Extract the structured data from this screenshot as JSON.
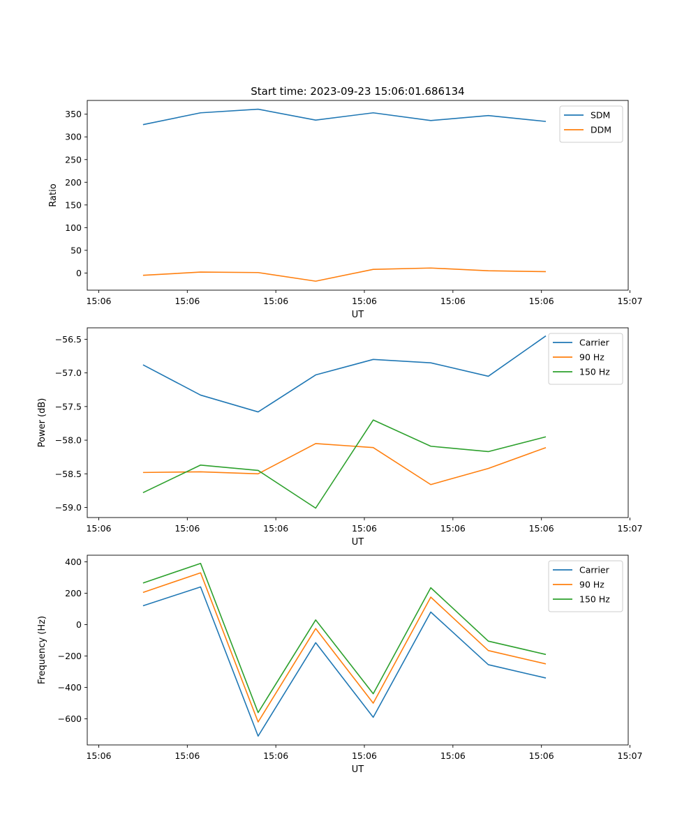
{
  "title": "Start time: 2023-09-23 15:06:01.686134",
  "colors": {
    "blue": "#1f77b4",
    "orange": "#ff7f0e",
    "green": "#2ca02c"
  },
  "chart_data": [
    {
      "type": "line",
      "title": "Start time: 2023-09-23 15:06:01.686134",
      "xlabel": "UT",
      "ylabel": "Ratio",
      "x": [
        0.5,
        1.15,
        1.8,
        2.45,
        3.1,
        3.75,
        4.4,
        5.05
      ],
      "xlim": [
        -0.13,
        5.98
      ],
      "x_ticks": [
        0,
        1,
        2,
        3,
        4,
        5,
        6
      ],
      "x_tick_labels": [
        "15:06",
        "15:06",
        "15:06",
        "15:06",
        "15:06",
        "15:06",
        "15:07"
      ],
      "ylim": [
        -37.8,
        380.3
      ],
      "y_ticks": [
        0,
        50,
        100,
        150,
        200,
        250,
        300,
        350
      ],
      "y_tick_labels": [
        "0",
        "50",
        "100",
        "150",
        "200",
        "250",
        "300",
        "350"
      ],
      "legend": "top-right",
      "series": [
        {
          "name": "SDM",
          "color": "#1f77b4",
          "values": [
            327,
            353,
            361,
            337,
            353,
            336,
            347,
            334
          ]
        },
        {
          "name": "DDM",
          "color": "#ff7f0e",
          "values": [
            -5,
            2,
            1,
            -18,
            8,
            11,
            5,
            3
          ]
        }
      ]
    },
    {
      "type": "line",
      "xlabel": "UT",
      "ylabel": "Power (dB)",
      "x": [
        0.5,
        1.15,
        1.8,
        2.45,
        3.1,
        3.75,
        4.4,
        5.05
      ],
      "xlim": [
        -0.13,
        5.98
      ],
      "x_ticks": [
        0,
        1,
        2,
        3,
        4,
        5,
        6
      ],
      "x_tick_labels": [
        "15:06",
        "15:06",
        "15:06",
        "15:06",
        "15:06",
        "15:06",
        "15:07"
      ],
      "ylim": [
        -59.15,
        -56.33
      ],
      "y_ticks": [
        -59.0,
        -58.5,
        -58.0,
        -57.5,
        -57.0,
        -56.5
      ],
      "y_tick_labels": [
        "−59.0",
        "−58.5",
        "−58.0",
        "−57.5",
        "−57.0",
        "−56.5"
      ],
      "legend": "top-right",
      "series": [
        {
          "name": "Carrier",
          "color": "#1f77b4",
          "values": [
            -56.88,
            -57.33,
            -57.58,
            -57.03,
            -56.8,
            -56.85,
            -57.05,
            -56.45
          ]
        },
        {
          "name": "90 Hz",
          "color": "#ff7f0e",
          "values": [
            -58.48,
            -58.47,
            -58.5,
            -58.05,
            -58.11,
            -58.66,
            -58.42,
            -58.11
          ]
        },
        {
          "name": "150 Hz",
          "color": "#2ca02c",
          "values": [
            -58.78,
            -58.37,
            -58.45,
            -59.01,
            -57.7,
            -58.09,
            -58.17,
            -57.95
          ]
        }
      ]
    },
    {
      "type": "line",
      "xlabel": "UT",
      "ylabel": "Frequency (Hz)",
      "x": [
        0.5,
        1.15,
        1.8,
        2.45,
        3.1,
        3.75,
        4.4,
        5.05
      ],
      "xlim": [
        -0.13,
        5.98
      ],
      "x_ticks": [
        0,
        1,
        2,
        3,
        4,
        5,
        6
      ],
      "x_tick_labels": [
        "15:06",
        "15:06",
        "15:06",
        "15:06",
        "15:06",
        "15:06",
        "15:07"
      ],
      "ylim": [
        -766,
        442
      ],
      "y_ticks": [
        -600,
        -400,
        -200,
        0,
        200,
        400
      ],
      "y_tick_labels": [
        "−600",
        "−400",
        "−200",
        "0",
        "200",
        "400"
      ],
      "legend": "top-right",
      "series": [
        {
          "name": "Carrier",
          "color": "#1f77b4",
          "values": [
            120,
            240,
            -710,
            -115,
            -590,
            80,
            -255,
            -340
          ]
        },
        {
          "name": "90 Hz",
          "color": "#ff7f0e",
          "values": [
            205,
            330,
            -620,
            -25,
            -500,
            175,
            -165,
            -250
          ]
        },
        {
          "name": "150 Hz",
          "color": "#2ca02c",
          "values": [
            265,
            390,
            -560,
            30,
            -440,
            235,
            -105,
            -190
          ]
        }
      ]
    }
  ]
}
